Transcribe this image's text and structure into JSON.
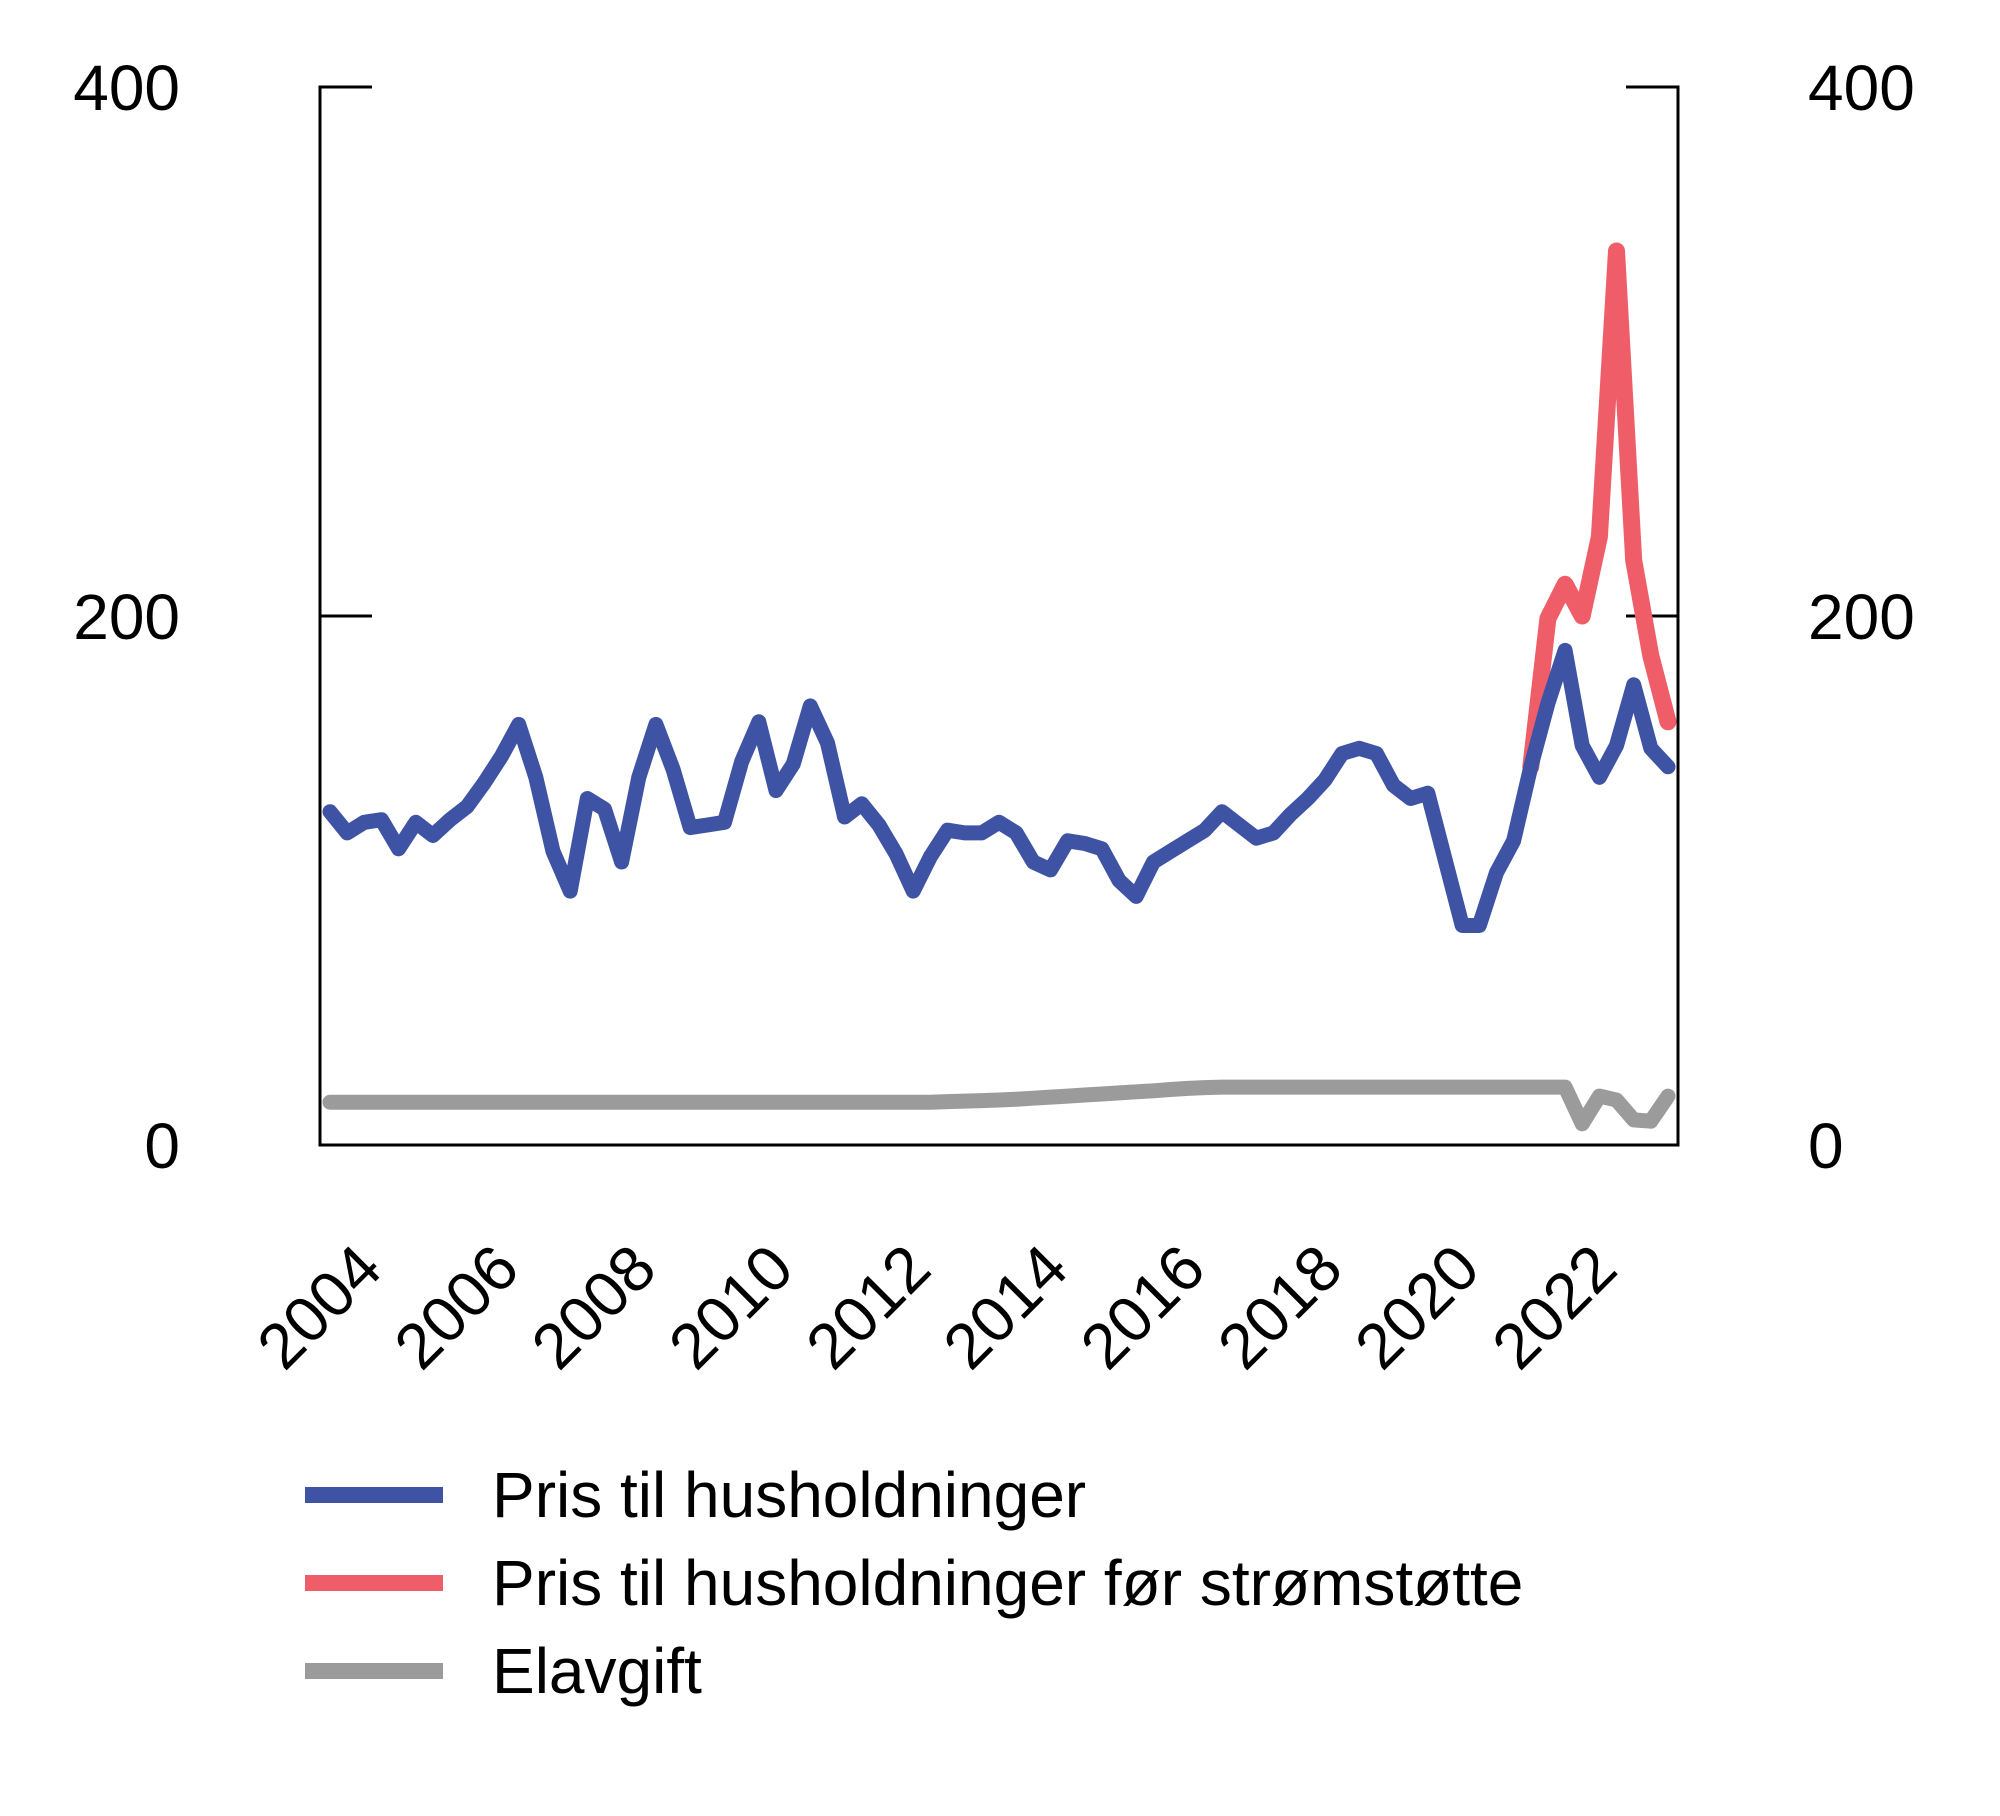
{
  "figure": {
    "background_color": "#ffffff",
    "axis_color": "#000000",
    "text_color": "#000000"
  },
  "chart_data": {
    "type": "line",
    "title": "",
    "xlabel": "",
    "ylabel": "",
    "x_frequency": "quarterly",
    "x_start": "2004 Q1",
    "x_end": "2023 Q3",
    "x_tick_labels": [
      "2004",
      "2006",
      "2008",
      "2010",
      "2012",
      "2014",
      "2016",
      "2018",
      "2020",
      "2022"
    ],
    "ylim": [
      0,
      400
    ],
    "y_ticks": [
      {
        "value": 0,
        "label": "0"
      },
      {
        "value": 200,
        "label": "200"
      },
      {
        "value": 400,
        "label": "400"
      }
    ],
    "y_axis_sides": [
      "left",
      "right"
    ],
    "grid": false,
    "legend_position": "bottom-left",
    "series": [
      {
        "name": "Pris til husholdninger",
        "color": "#3E53A4",
        "line_width": 15,
        "start_quarter_index": 0,
        "values": [
          126,
          118,
          122,
          123,
          112,
          122,
          117,
          123,
          128,
          137,
          147,
          159,
          139,
          111,
          96,
          131,
          127,
          107,
          139,
          159,
          142,
          120,
          121,
          122,
          145,
          160,
          134,
          144,
          166,
          152,
          124,
          129,
          121,
          110,
          96,
          109,
          119,
          118,
          118,
          122,
          118,
          107,
          104,
          115,
          114,
          112,
          100,
          94,
          107,
          111,
          115,
          119,
          126,
          121,
          116,
          118,
          125,
          131,
          138,
          148,
          150,
          148,
          136,
          131,
          133,
          108,
          83,
          83,
          103,
          115,
          143,
          167,
          187,
          151,
          139,
          151,
          174,
          150,
          143
        ]
      },
      {
        "name": "Pris til husholdninger før strømstøtte",
        "color": "#EF5D68",
        "line_width": 17,
        "start_quarter_index": 70,
        "values": [
          143,
          199,
          212,
          200,
          230,
          338,
          221,
          185,
          160
        ]
      },
      {
        "name": "Elavgift",
        "color": "#9B9B9B",
        "line_width": 15,
        "start_quarter_index": 0,
        "values": [
          16.2,
          16.2,
          16.2,
          16.2,
          16.2,
          16.2,
          16.2,
          16.2,
          16.2,
          16.2,
          16.2,
          16.2,
          16.2,
          16.2,
          16.2,
          16.2,
          16.2,
          16.2,
          16.2,
          16.2,
          16.2,
          16.2,
          16.2,
          16.2,
          16.2,
          16.2,
          16.2,
          16.2,
          16.2,
          16.2,
          16.2,
          16.2,
          16.2,
          16.2,
          16.2,
          16.2,
          16.4,
          16.6,
          16.8,
          17,
          17.3,
          17.7,
          18.1,
          18.5,
          18.9,
          19.3,
          19.7,
          20.1,
          20.5,
          21,
          21.4,
          21.7,
          21.9,
          21.9,
          21.9,
          21.9,
          21.9,
          21.9,
          21.9,
          21.9,
          21.9,
          21.9,
          21.9,
          21.9,
          21.9,
          21.9,
          21.9,
          21.9,
          21.9,
          21.9,
          21.9,
          21.9,
          21.9,
          8,
          18.5,
          17,
          9.5,
          9,
          18.5
        ]
      }
    ]
  },
  "legend": {
    "items": [
      {
        "label": "Pris til husholdninger",
        "color": "#3E53A4"
      },
      {
        "label": "Pris til husholdninger før strømstøtte",
        "color": "#EF5D68"
      },
      {
        "label": "Elavgift",
        "color": "#9B9B9B"
      }
    ]
  }
}
